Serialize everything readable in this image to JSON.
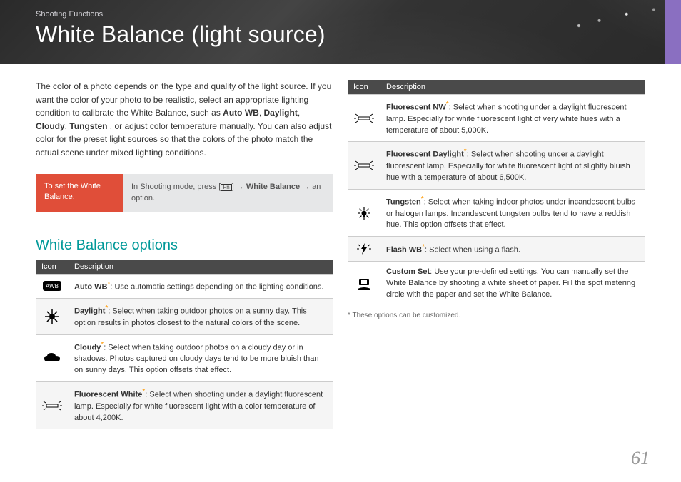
{
  "header": {
    "breadcrumb": "Shooting Functions",
    "title": "White Balance (light source)",
    "accent_color": "#8a6fc1",
    "bg_gradient": [
      "#2a2a2a",
      "#444444"
    ]
  },
  "intro": {
    "pre": "The color of a photo depends on the type and quality of the light source. If you want the color of your photo to be realistic, select an appropriate lighting condition to calibrate the White Balance, such as ",
    "b1": "Auto WB",
    "s1": ", ",
    "b2": "Daylight",
    "s2": ", ",
    "b3": "Cloudy",
    "s3": ", ",
    "b4": "Tungsten",
    "post": ", or adjust color temperature manually. You can also adjust color for the preset light sources so that the colors of the photo match the actual scene under mixed lighting conditions."
  },
  "callout": {
    "left": "To set the White Balance,",
    "right_pre": "In Shooting mode, press [",
    "right_fn": "Fn",
    "right_mid": "] → ",
    "right_b": "White Balance",
    "right_post": " → an option.",
    "left_bg": "#e04e39",
    "right_bg": "#e6e7e8"
  },
  "section_heading": "White Balance options",
  "section_heading_color": "#009999",
  "table": {
    "header_bg": "#4a4a4a",
    "col_icon": "Icon",
    "col_desc": "Description",
    "footnote": "* These options can be customized."
  },
  "rows_left": [
    {
      "icon": "auto",
      "title": "Auto WB",
      "star": true,
      "text": ": Use automatic settings depending on the lighting conditions."
    },
    {
      "icon": "sun",
      "title": "Daylight",
      "star": true,
      "text": ": Select when taking outdoor photos on a sunny day. This option results in photos closest to the natural colors of the scene."
    },
    {
      "icon": "cloud",
      "title": "Cloudy",
      "star": true,
      "text": ": Select when taking outdoor photos on a cloudy day or in shadows. Photos captured on cloudy days tend to be more bluish than on sunny days. This option offsets that effect."
    },
    {
      "icon": "fluor",
      "title": "Fluorescent White",
      "star": true,
      "text": ": Select when shooting under a daylight fluorescent lamp. Especially for white fluorescent light with a color temperature of about 4,200K."
    }
  ],
  "rows_right": [
    {
      "icon": "fluor",
      "title": "Fluorescent NW",
      "star": true,
      "text": ": Select when shooting under a daylight fluorescent lamp. Especially for white fluorescent light of very white hues with a temperature of about 5,000K."
    },
    {
      "icon": "fluor",
      "title": "Fluorescent Daylight",
      "star": true,
      "text": ": Select when shooting under a daylight fluorescent lamp. Especially for white fluorescent light of slightly bluish hue with a temperature of about 6,500K."
    },
    {
      "icon": "bulb",
      "title": "Tungsten",
      "star": true,
      "text": ": Select when taking indoor photos under incandescent bulbs or halogen lamps. Incandescent tungsten bulbs tend to have a reddish hue. This option offsets that effect."
    },
    {
      "icon": "flash",
      "title": "Flash WB",
      "star": true,
      "text": ": Select when using a flash."
    },
    {
      "icon": "custom",
      "title": "Custom Set",
      "star": false,
      "text": ": Use your pre-defined settings. You can manually set the White Balance by shooting a white sheet of paper. Fill the spot metering circle with the paper and set the White Balance."
    }
  ],
  "page_number": "61",
  "icons_color": "#000000"
}
